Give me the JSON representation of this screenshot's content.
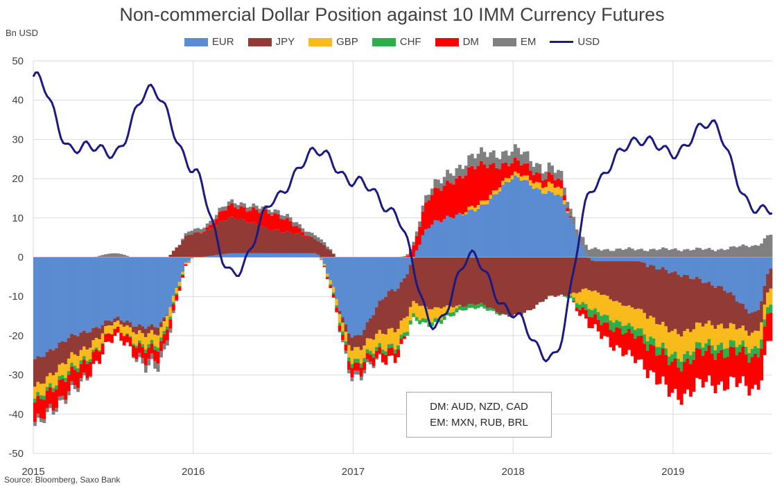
{
  "chart_data": {
    "type": "bar",
    "title": "Non-commercial Dollar Position against 10 IMM Currency Futures",
    "ylabel": "Bn USD",
    "ylim": [
      -50,
      50
    ],
    "yticks": [
      -50,
      -40,
      -30,
      -20,
      -10,
      0,
      10,
      20,
      30,
      40,
      50
    ],
    "xticks": [
      "2015",
      "2016",
      "2017",
      "2018",
      "2019"
    ],
    "xrange": [
      "2015-01",
      "2019-08"
    ],
    "grid": true,
    "legend_position": "top",
    "annotations": [
      "DM: AUD, NZD, CAD",
      "EM: MXN, RUB, BRL"
    ],
    "source": "Source: Bloomberg, Saxo Bank",
    "x": [
      2015.0,
      2015.25,
      2015.5,
      2015.75,
      2016.0,
      2016.25,
      2016.5,
      2016.75,
      2017.0,
      2017.25,
      2017.5,
      2017.75,
      2018.0,
      2018.25,
      2018.5,
      2018.75,
      2019.0,
      2019.25,
      2019.5,
      2019.62
    ],
    "series": [
      {
        "name": "EUR",
        "kind": "stacked-bar",
        "color": "#5B8BD0",
        "values": [
          -26,
          -20,
          -16,
          -18,
          0,
          1,
          1,
          1,
          -20,
          -8,
          9,
          12,
          20,
          16,
          -1,
          -1,
          -4,
          -7,
          -14,
          -2
        ]
      },
      {
        "name": "JPY",
        "kind": "stacked-bar",
        "color": "#923A35",
        "values": [
          -7,
          -5,
          -1,
          -2,
          6,
          9,
          6,
          4,
          -3,
          -10,
          -13,
          -12,
          -15,
          -10,
          -8,
          -12,
          -15,
          -10,
          -5,
          -5
        ]
      },
      {
        "name": "GBP",
        "kind": "stacked-bar",
        "color": "#F9BB1C",
        "values": [
          -3,
          -3,
          -2,
          -3,
          0,
          0,
          0,
          0,
          -3,
          -4,
          -3,
          1,
          1,
          2,
          -5,
          -5,
          -6,
          -5,
          -4,
          -4
        ]
      },
      {
        "name": "CHF",
        "kind": "stacked-bar",
        "color": "#2EAD4B",
        "values": [
          -1,
          -1,
          0,
          -1,
          0,
          0,
          0,
          0,
          -1,
          -1,
          -1,
          -1,
          0,
          0,
          -2,
          -2,
          -2,
          -2,
          -2,
          -2
        ]
      },
      {
        "name": "DM",
        "kind": "stacked-bar",
        "color": "#FF0000",
        "values": [
          -5,
          -4,
          -2,
          -3,
          0,
          3,
          4,
          0,
          -2,
          -2,
          8,
          10,
          3,
          2,
          -3,
          -6,
          -8,
          -8,
          -8,
          -7
        ]
      },
      {
        "name": "EM",
        "kind": "stacked-bar",
        "color": "#808080",
        "values": [
          -1,
          -1,
          1,
          -2,
          1,
          1,
          1,
          1,
          -1,
          0,
          2,
          3,
          3,
          2,
          2,
          2,
          2,
          2,
          3,
          6
        ]
      },
      {
        "name": "USD",
        "kind": "line",
        "color": "#1A1A80",
        "values": [
          46,
          28,
          27,
          43,
          22,
          -5,
          14,
          27,
          20,
          12,
          -17,
          0,
          -15,
          -26,
          18,
          30,
          27,
          34,
          12,
          13
        ]
      }
    ]
  }
}
